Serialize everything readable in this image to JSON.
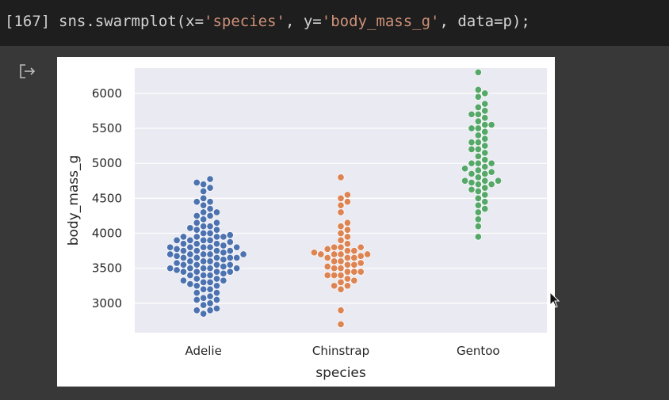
{
  "cell": {
    "execution_count": "[167]",
    "code": {
      "fn": "sns.swarmplot(x=",
      "arg_x": "'species'",
      "sep1": ", y=",
      "arg_y": "'body_mass_g'",
      "rest": ", data=p);"
    }
  },
  "output": {
    "icon": "output-redirect-icon"
  },
  "chart_data": {
    "type": "scatter",
    "subtype": "swarm",
    "xlabel": "species",
    "ylabel": "body_mass_g",
    "categories": [
      "Adelie",
      "Chinstrap",
      "Gentoo"
    ],
    "yticks": [
      3000,
      3500,
      4000,
      4500,
      5000,
      5500,
      6000
    ],
    "ylim": [
      2580,
      6360
    ],
    "grid": true,
    "colors": [
      "#4c72b0",
      "#dd8452",
      "#55a868"
    ],
    "background": "#eaeaf2",
    "series": [
      {
        "name": "Adelie",
        "values": [
          2850,
          2900,
          2900,
          2925,
          2975,
          3000,
          3050,
          3050,
          3075,
          3100,
          3150,
          3150,
          3200,
          3200,
          3250,
          3250,
          3275,
          3300,
          3300,
          3325,
          3325,
          3350,
          3350,
          3400,
          3400,
          3400,
          3425,
          3450,
          3450,
          3450,
          3450,
          3475,
          3500,
          3500,
          3500,
          3500,
          3500,
          3525,
          3550,
          3550,
          3550,
          3550,
          3575,
          3600,
          3600,
          3600,
          3625,
          3650,
          3650,
          3650,
          3650,
          3650,
          3675,
          3700,
          3700,
          3700,
          3700,
          3700,
          3725,
          3750,
          3750,
          3750,
          3750,
          3775,
          3800,
          3800,
          3800,
          3800,
          3800,
          3825,
          3850,
          3850,
          3850,
          3875,
          3900,
          3900,
          3900,
          3900,
          3950,
          3950,
          3950,
          3950,
          3975,
          4000,
          4000,
          4050,
          4050,
          4075,
          4100,
          4100,
          4150,
          4150,
          4200,
          4250,
          4250,
          4300,
          4300,
          4350,
          4400,
          4450,
          4450,
          4500,
          4600,
          4650,
          4700,
          4725,
          4775
        ],
        "n_shown": 151
      },
      {
        "name": "Chinstrap",
        "values": [
          2700,
          2900,
          3200,
          3250,
          3250,
          3300,
          3325,
          3350,
          3400,
          3400,
          3400,
          3450,
          3450,
          3450,
          3500,
          3500,
          3525,
          3550,
          3550,
          3575,
          3600,
          3600,
          3650,
          3650,
          3650,
          3675,
          3700,
          3700,
          3700,
          3700,
          3725,
          3750,
          3750,
          3775,
          3800,
          3800,
          3800,
          3850,
          3900,
          3950,
          4000,
          4050,
          4100,
          4150,
          4300,
          4400,
          4450,
          4500,
          4550,
          4800
        ]
      },
      {
        "name": "Gentoo",
        "values": [
          3950,
          4100,
          4200,
          4300,
          4350,
          4400,
          4450,
          4500,
          4550,
          4600,
          4625,
          4650,
          4700,
          4700,
          4725,
          4750,
          4750,
          4750,
          4800,
          4850,
          4850,
          4875,
          4900,
          4925,
          4950,
          5000,
          5000,
          5000,
          5050,
          5100,
          5150,
          5200,
          5200,
          5250,
          5300,
          5300,
          5350,
          5400,
          5450,
          5500,
          5500,
          5550,
          5550,
          5600,
          5650,
          5700,
          5700,
          5750,
          5800,
          5850,
          5950,
          6000,
          6050,
          6300
        ]
      }
    ]
  }
}
